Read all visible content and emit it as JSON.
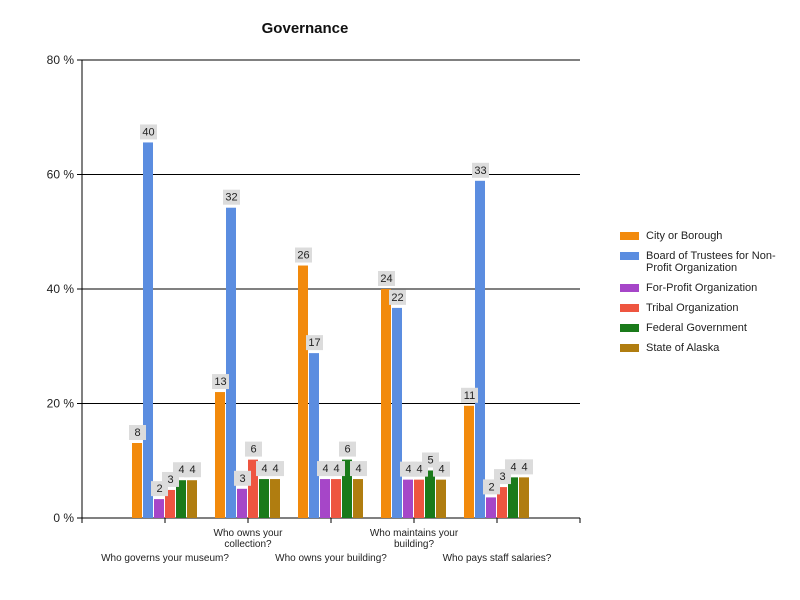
{
  "chart_data": {
    "type": "bar",
    "title": "Governance",
    "xlabel": "",
    "ylabel": "",
    "ylim": [
      0,
      80
    ],
    "yticks": [
      "0 %",
      "20 %",
      "40 %",
      "60 %",
      "80 %"
    ],
    "grid": true,
    "legend_position": "right",
    "categories": [
      "Who governs your museum?",
      "Who owns your collection?",
      "Who owns your building?",
      "Who maintains your building?",
      "Who pays staff salaries?"
    ],
    "series": [
      {
        "name": "City or Borough",
        "color": "#f28a0c",
        "values": [
          13.1,
          22.0,
          44.1,
          40.0,
          19.6
        ],
        "labels": [
          "8",
          "13",
          "26",
          "24",
          "11"
        ]
      },
      {
        "name": "Board of Trustees for Non-Profit Organization",
        "color": "#5b8de0",
        "values": [
          65.6,
          54.2,
          28.8,
          36.7,
          58.9
        ],
        "labels": [
          "40",
          "32",
          "17",
          "22",
          "33"
        ]
      },
      {
        "name": "For-Profit Organization",
        "color": "#a646c8",
        "values": [
          3.3,
          5.1,
          6.8,
          6.7,
          3.6
        ],
        "labels": [
          "2",
          "3",
          "4",
          "4",
          "2"
        ]
      },
      {
        "name": "Tribal Organization",
        "color": "#ee5540",
        "values": [
          4.9,
          10.2,
          6.8,
          6.7,
          5.4
        ],
        "labels": [
          "3",
          "6",
          "4",
          "4",
          "3"
        ]
      },
      {
        "name": "Federal Government",
        "color": "#1a7a1a",
        "values": [
          6.6,
          6.8,
          10.2,
          8.3,
          7.1
        ],
        "labels": [
          "4",
          "4",
          "6",
          "5",
          "4"
        ]
      },
      {
        "name": "State of Alaska",
        "color": "#b07d10",
        "values": [
          6.6,
          6.8,
          6.8,
          6.7,
          7.1
        ],
        "labels": [
          "4",
          "4",
          "4",
          "4",
          "4"
        ]
      }
    ]
  }
}
